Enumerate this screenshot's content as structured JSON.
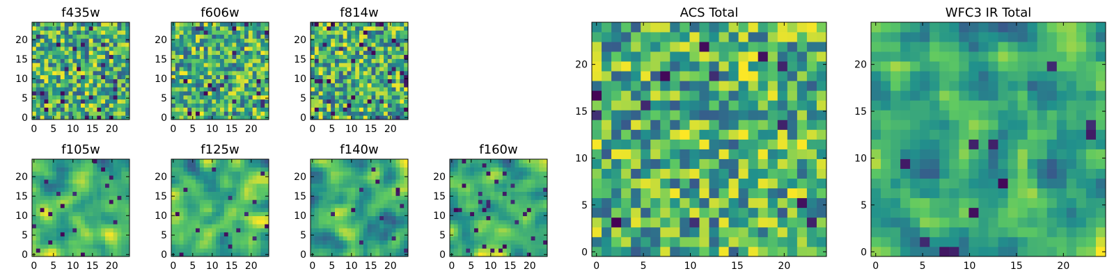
{
  "figure": {
    "caption": ""
  },
  "chart_data": [
    {
      "id": "f435w",
      "type": "heatmap",
      "title": "f435w",
      "grid": [
        24,
        24
      ],
      "xlim": [
        0,
        24
      ],
      "ylim": [
        0,
        24
      ],
      "xticks": [
        0,
        5,
        10,
        15,
        20
      ],
      "yticks": [
        0,
        5,
        10,
        15,
        20
      ],
      "seed": 435,
      "smooth": 0,
      "dark_fraction": 0.05
    },
    {
      "id": "f606w",
      "type": "heatmap",
      "title": "f606w",
      "grid": [
        24,
        24
      ],
      "xlim": [
        0,
        24
      ],
      "ylim": [
        0,
        24
      ],
      "xticks": [
        0,
        5,
        10,
        15,
        20
      ],
      "yticks": [
        0,
        5,
        10,
        15,
        20
      ],
      "seed": 606,
      "smooth": 0,
      "dark_fraction": 0.04
    },
    {
      "id": "f814w",
      "type": "heatmap",
      "title": "f814w",
      "grid": [
        24,
        24
      ],
      "xlim": [
        0,
        24
      ],
      "ylim": [
        0,
        24
      ],
      "xticks": [
        0,
        5,
        10,
        15,
        20
      ],
      "yticks": [
        0,
        5,
        10,
        15,
        20
      ],
      "seed": 814,
      "smooth": 0,
      "dark_fraction": 0.06
    },
    {
      "id": "f105w",
      "type": "heatmap",
      "title": "f105w",
      "grid": [
        24,
        24
      ],
      "xlim": [
        0,
        24
      ],
      "ylim": [
        0,
        24
      ],
      "xticks": [
        0,
        5,
        10,
        15,
        20
      ],
      "yticks": [
        0,
        5,
        10,
        15,
        20
      ],
      "seed": 105,
      "smooth": 2,
      "dark_fraction": 0.03
    },
    {
      "id": "f125w",
      "type": "heatmap",
      "title": "f125w",
      "grid": [
        24,
        24
      ],
      "xlim": [
        0,
        24
      ],
      "ylim": [
        0,
        24
      ],
      "xticks": [
        0,
        5,
        10,
        15,
        20
      ],
      "yticks": [
        0,
        5,
        10,
        15,
        20
      ],
      "seed": 125,
      "smooth": 2,
      "dark_fraction": 0.03
    },
    {
      "id": "f140w",
      "type": "heatmap",
      "title": "f140w",
      "grid": [
        24,
        24
      ],
      "xlim": [
        0,
        24
      ],
      "ylim": [
        0,
        24
      ],
      "xticks": [
        0,
        5,
        10,
        15,
        20
      ],
      "yticks": [
        0,
        5,
        10,
        15,
        20
      ],
      "seed": 140,
      "smooth": 2,
      "dark_fraction": 0.03
    },
    {
      "id": "f160w",
      "type": "heatmap",
      "title": "f160w",
      "grid": [
        24,
        24
      ],
      "xlim": [
        0,
        24
      ],
      "ylim": [
        0,
        24
      ],
      "xticks": [
        0,
        5,
        10,
        15,
        20
      ],
      "yticks": [
        0,
        5,
        10,
        15,
        20
      ],
      "seed": 160,
      "smooth": 2,
      "dark_fraction": 0.04
    },
    {
      "id": "acs-total",
      "type": "heatmap",
      "title": "ACS Total",
      "grid": [
        24,
        24
      ],
      "xlim": [
        0,
        24
      ],
      "ylim": [
        0,
        24
      ],
      "xticks": [
        0,
        5,
        10,
        15,
        20
      ],
      "yticks": [
        0,
        5,
        10,
        15,
        20
      ],
      "seed": 77,
      "smooth": 0,
      "dark_fraction": 0.02
    },
    {
      "id": "wfc3-total",
      "type": "heatmap",
      "title": "WFC3 IR Total",
      "grid": [
        24,
        24
      ],
      "xlim": [
        0,
        24
      ],
      "ylim": [
        0,
        24
      ],
      "xticks": [
        0,
        5,
        10,
        15,
        20
      ],
      "yticks": [
        0,
        5,
        10,
        15,
        20
      ],
      "seed": 31,
      "smooth": 1,
      "dark_fraction": 0.02
    }
  ],
  "colormap": {
    "name": "viridis",
    "stops": [
      "#440154",
      "#3b528b",
      "#21918c",
      "#5ec962",
      "#fde725"
    ]
  }
}
